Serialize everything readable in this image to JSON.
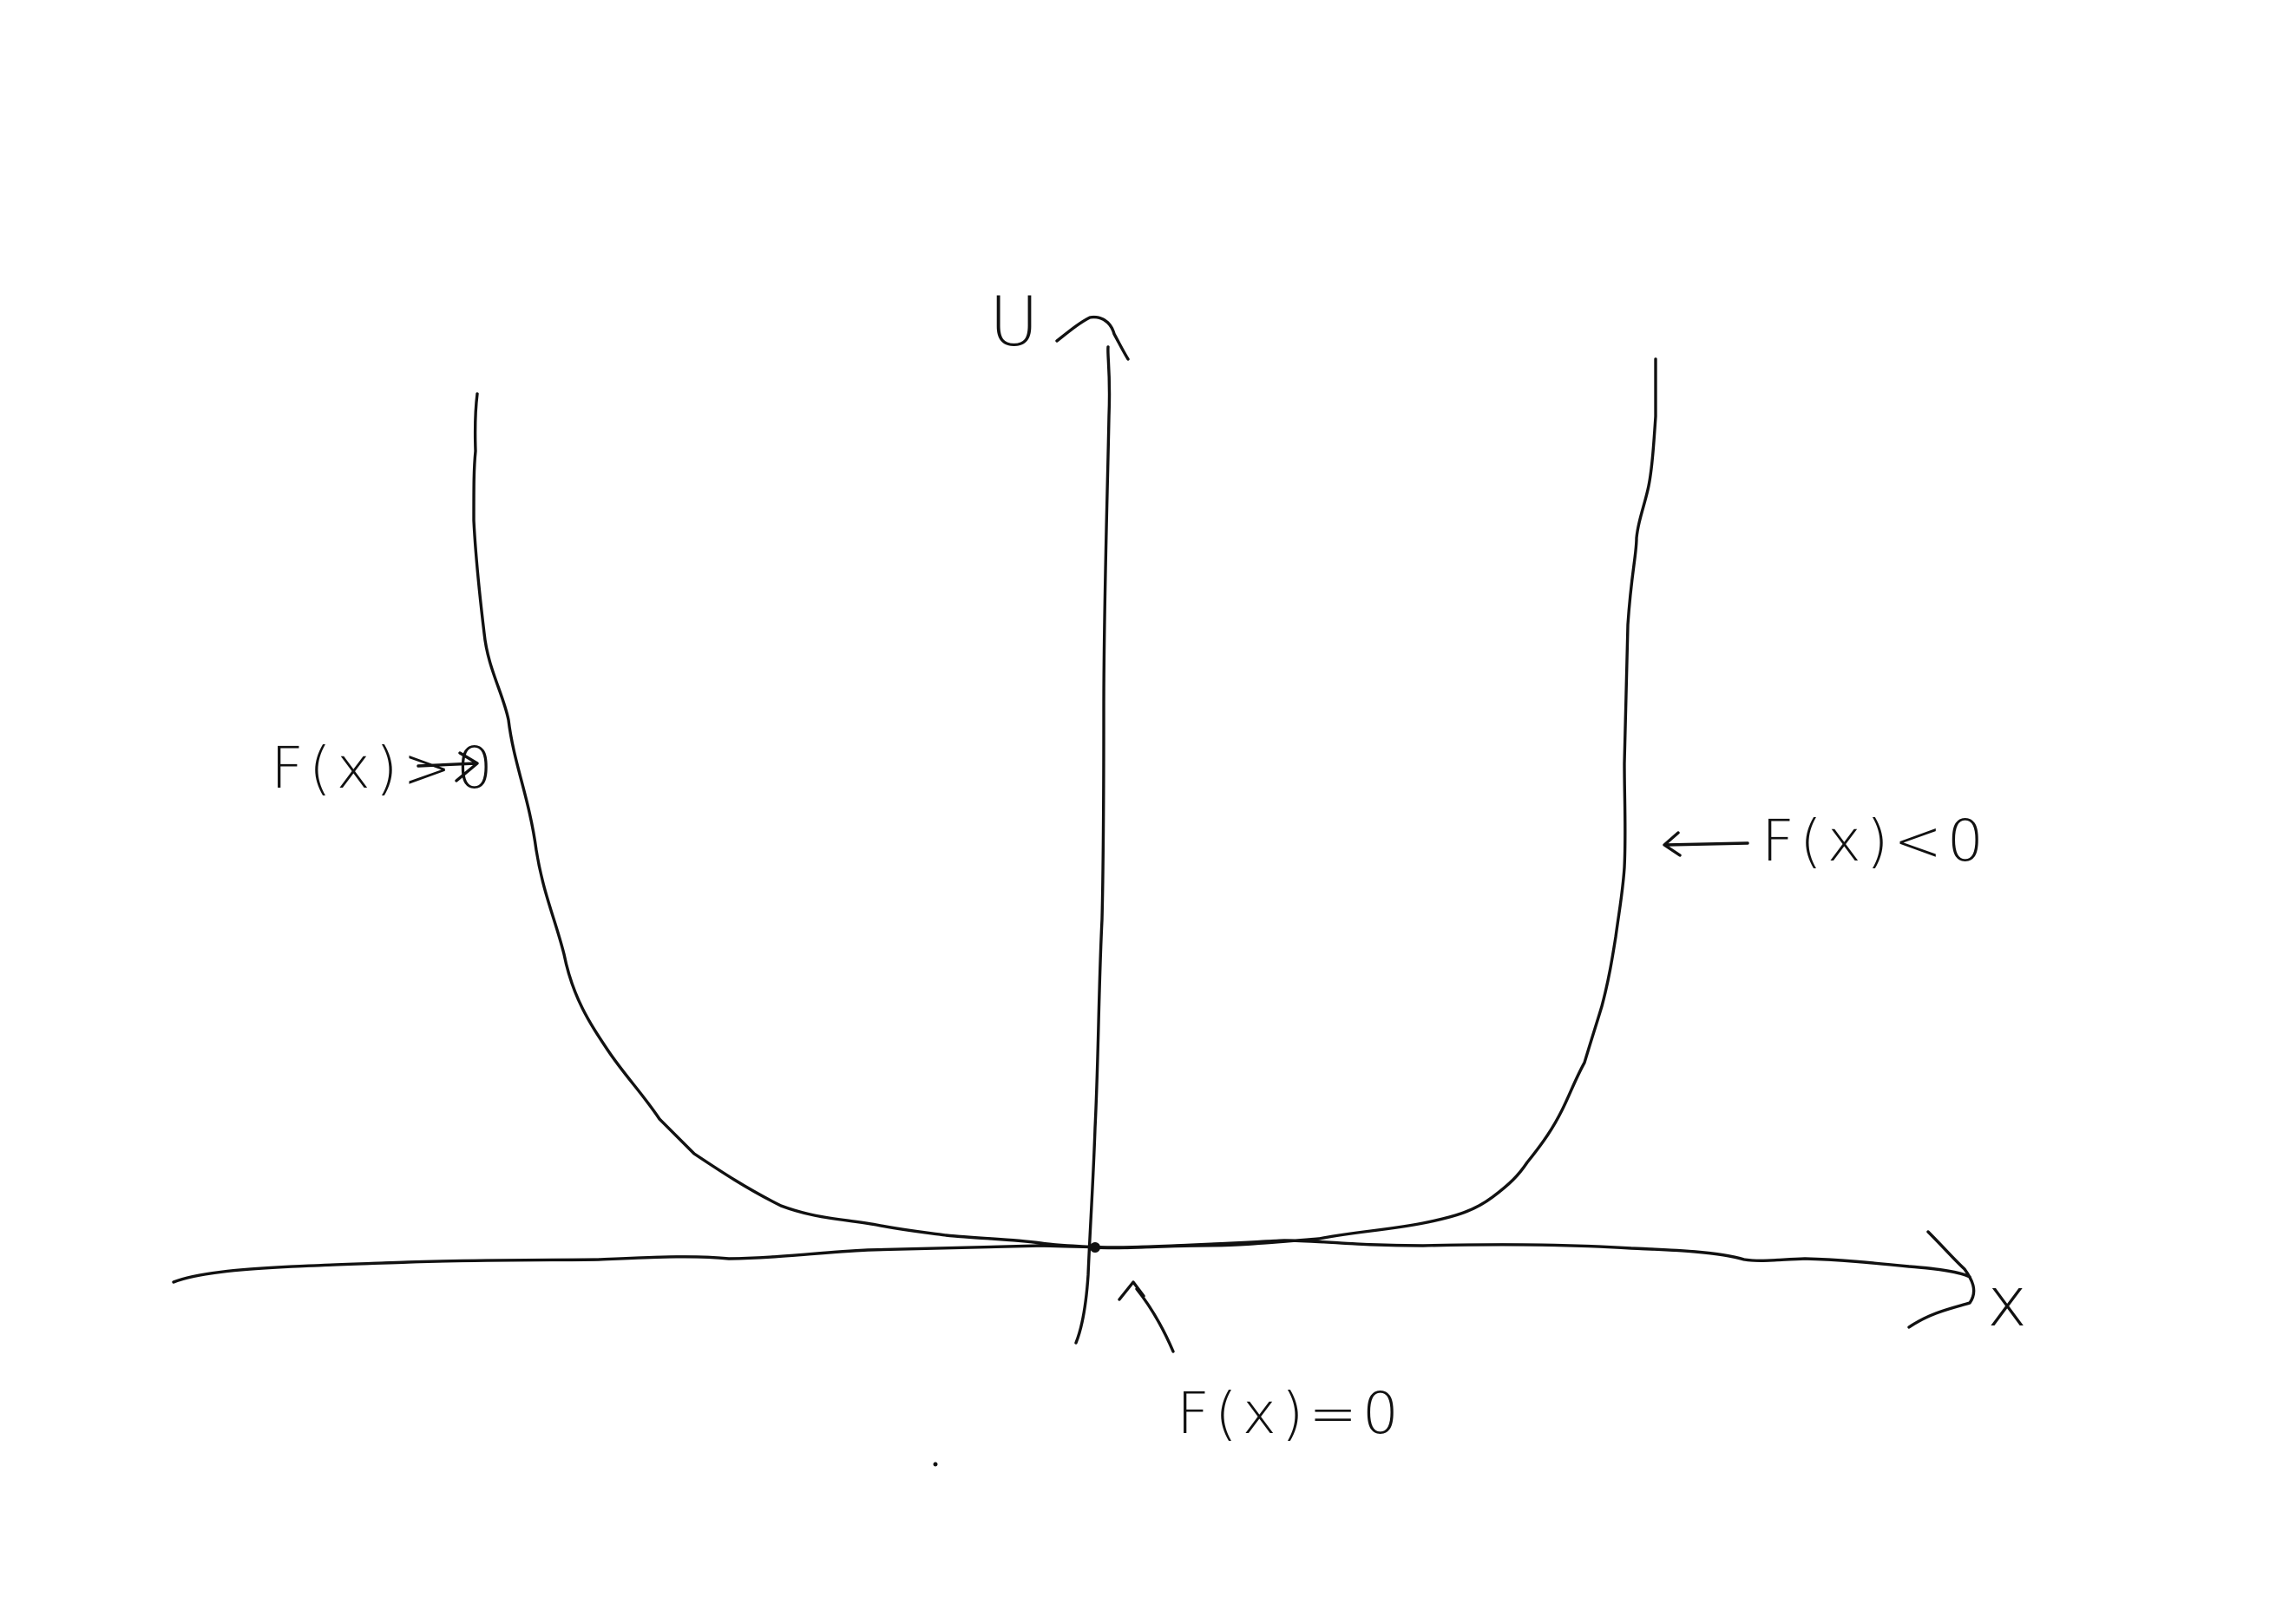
{
  "diagram": {
    "axes": {
      "y_label": "U",
      "x_label": "x"
    },
    "annotations": {
      "left_side": "F(x)>0",
      "right_side": "F(x)<0",
      "bottom_center": "F(x)=0"
    },
    "colors": {
      "ink": "#111111",
      "background": "#ffffff"
    }
  }
}
